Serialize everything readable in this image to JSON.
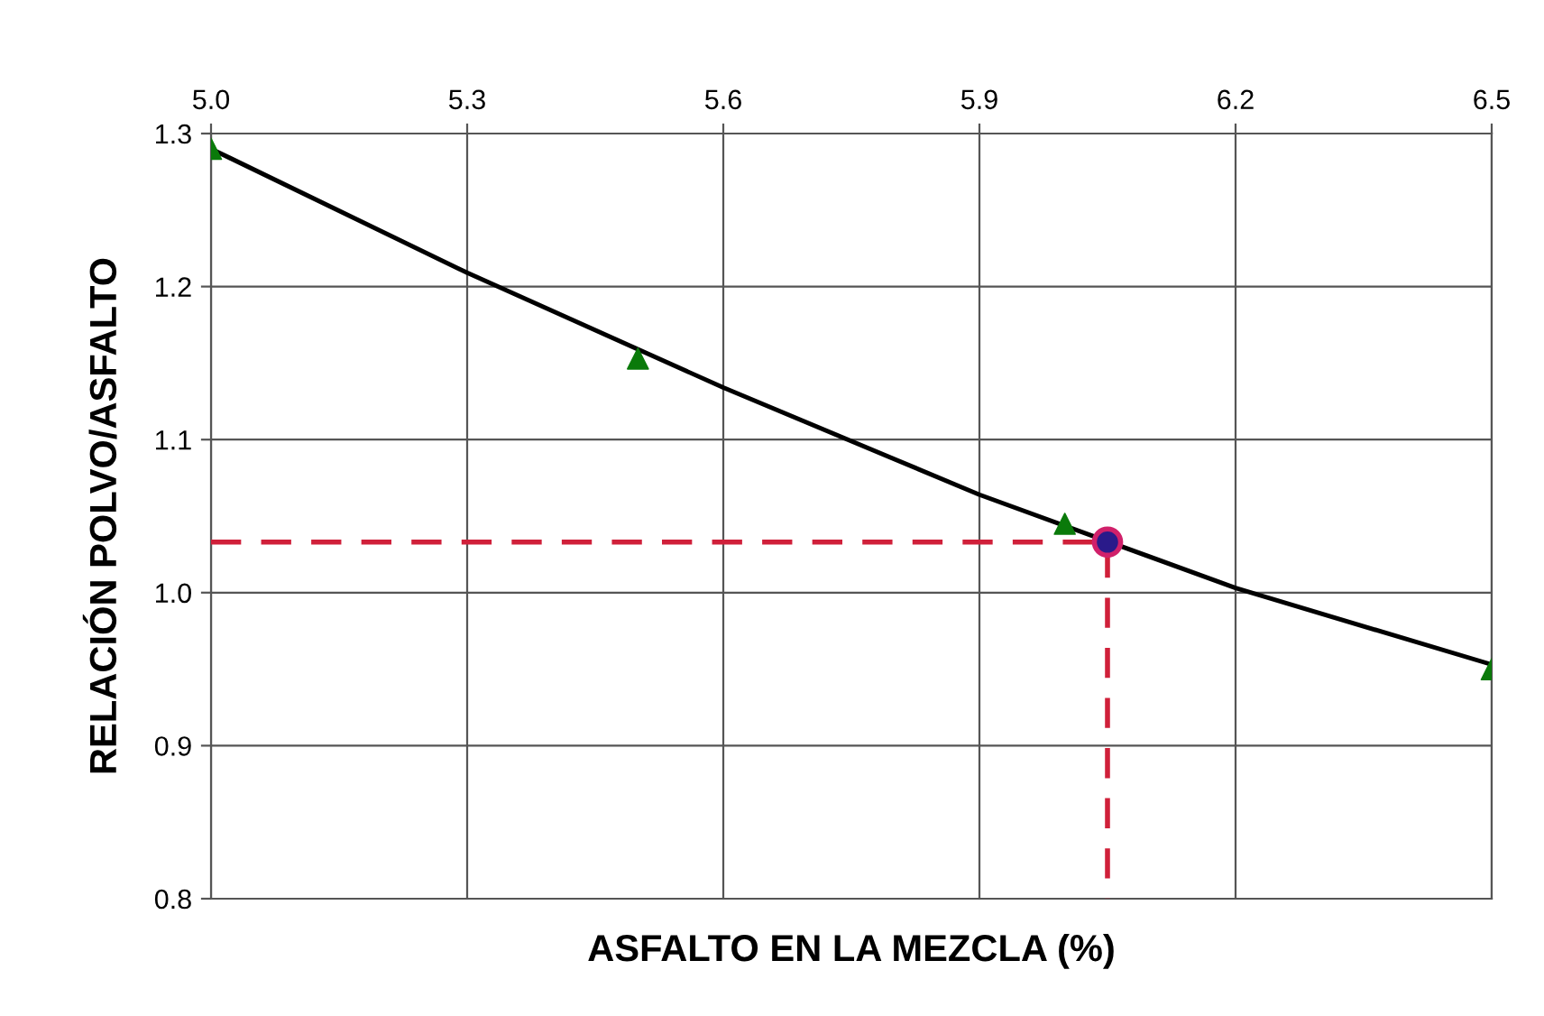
{
  "chart_data": {
    "type": "line",
    "xlabel": "ASFALTO EN LA MEZCLA (%)",
    "ylabel": "RELACIÓN POLVO/ASFALTO",
    "xlim": [
      5.0,
      6.5
    ],
    "xticks": [
      {
        "value": 5.0,
        "label": "5.0"
      },
      5.3,
      5.6,
      5.9,
      6.2,
      6.5
    ],
    "ylim": [
      0.8,
      1.3
    ],
    "yticks": [
      {
        "value": 0.8,
        "label": "0.8"
      },
      0.9,
      {
        "value": 1.0,
        "label": "1.0"
      },
      1.1,
      1.2,
      1.3
    ],
    "grid": true,
    "legend": false,
    "series": [
      {
        "color": "#000000",
        "marker": "none",
        "line_style": "solid",
        "x": [
          5.0,
          5.3,
          5.6,
          5.9,
          6.2,
          6.5
        ],
        "values": [
          1.29,
          1.209,
          1.134,
          1.064,
          1.003,
          0.953
        ]
      },
      {
        "color": "#d0203a",
        "marker": "none",
        "line_style": "dashed",
        "x": [
          5.0,
          6.05,
          6.05
        ],
        "values": [
          1.033,
          1.033,
          0.8
        ]
      },
      {
        "type": "scatter",
        "color": "#0a7a0a",
        "marker": "triangle",
        "x": [
          5.0,
          5.5,
          6.0,
          6.5
        ],
        "values": [
          1.29,
          1.153,
          1.045,
          0.95
        ]
      },
      {
        "type": "scatter",
        "color": "#2a1a8a",
        "marker": "circle",
        "x": [
          6.05
        ],
        "values": [
          1.033
        ]
      }
    ]
  }
}
